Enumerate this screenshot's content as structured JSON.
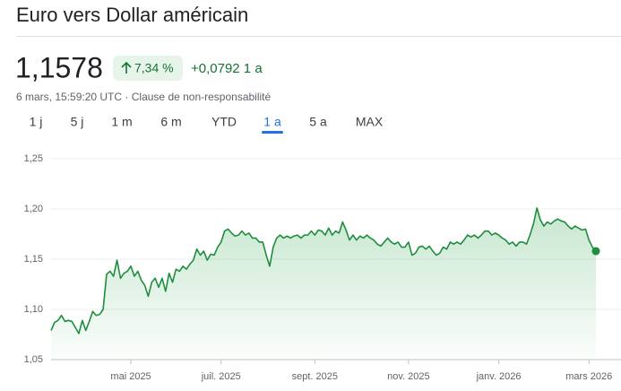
{
  "header": {
    "title": "Euro vers Dollar américain",
    "price": "1,1578",
    "change_pct": "7,34 %",
    "change_abs": "+0,0792 1 a",
    "timestamp": "6 mars, 15:59:20 UTC",
    "separator": "·",
    "disclaimer": "Clause de non-responsabilité"
  },
  "tabs": {
    "items": [
      "1 j",
      "5 j",
      "1 m",
      "6 m",
      "YTD",
      "1 a",
      "5 a",
      "MAX"
    ],
    "selected": 5
  },
  "chart_data": {
    "type": "line",
    "categories": [
      null,
      null,
      null,
      null,
      null,
      null,
      null,
      null,
      null,
      null,
      null,
      null,
      null,
      null,
      null,
      null,
      null,
      null,
      null,
      null,
      null,
      null,
      null,
      "mai 2025",
      null,
      null,
      null,
      null,
      null,
      null,
      null,
      null,
      null,
      null,
      null,
      null,
      null,
      null,
      null,
      null,
      null,
      null,
      null,
      null,
      null,
      null,
      null,
      null,
      null,
      "juil. 2025",
      null,
      null,
      null,
      null,
      null,
      null,
      null,
      null,
      null,
      null,
      null,
      null,
      null,
      null,
      null,
      null,
      null,
      null,
      null,
      null,
      null,
      null,
      null,
      null,
      null,
      null,
      "sept. 2025",
      null,
      null,
      null,
      null,
      null,
      null,
      null,
      null,
      null,
      null,
      null,
      null,
      null,
      null,
      null,
      null,
      null,
      null,
      null,
      null,
      null,
      null,
      null,
      null,
      null,
      null,
      "nov. 2025",
      null,
      null,
      null,
      null,
      null,
      null,
      null,
      null,
      null,
      null,
      null,
      null,
      null,
      null,
      null,
      null,
      null,
      null,
      null,
      null,
      null,
      null,
      null,
      null,
      null,
      "janv. 2026",
      null,
      null,
      null,
      null,
      null,
      null,
      null,
      null,
      null,
      null,
      null,
      null,
      null,
      null,
      null,
      null,
      null,
      null,
      null,
      null,
      null,
      null,
      null,
      null,
      null,
      "mars 2026",
      null,
      null
    ],
    "series": [
      {
        "color": "#1e8e3e",
        "values": [
          1.079,
          1.087,
          1.089,
          1.094,
          1.088,
          1.089,
          1.088,
          1.082,
          1.076,
          1.089,
          1.079,
          1.088,
          1.098,
          1.094,
          1.095,
          1.1,
          1.135,
          1.138,
          1.133,
          1.149,
          1.131,
          1.136,
          1.138,
          1.143,
          1.133,
          1.138,
          1.129,
          1.124,
          1.113,
          1.127,
          1.131,
          1.122,
          1.131,
          1.118,
          1.136,
          1.127,
          1.14,
          1.138,
          1.143,
          1.14,
          1.145,
          1.149,
          1.16,
          1.154,
          1.158,
          1.149,
          1.155,
          1.154,
          1.162,
          1.167,
          1.178,
          1.18,
          1.176,
          1.173,
          1.174,
          1.178,
          1.174,
          1.176,
          1.171,
          1.171,
          1.167,
          1.167,
          1.154,
          1.143,
          1.162,
          1.171,
          1.174,
          1.171,
          1.173,
          1.171,
          1.173,
          1.174,
          1.171,
          1.174,
          1.174,
          1.178,
          1.174,
          1.179,
          1.178,
          1.174,
          1.181,
          1.174,
          1.178,
          1.176,
          1.187,
          1.179,
          1.169,
          1.174,
          1.169,
          1.173,
          1.171,
          1.174,
          1.171,
          1.169,
          1.165,
          1.163,
          1.167,
          1.171,
          1.167,
          1.165,
          1.167,
          1.162,
          1.162,
          1.167,
          1.154,
          1.156,
          1.162,
          1.163,
          1.16,
          1.163,
          1.158,
          1.154,
          1.156,
          1.162,
          1.16,
          1.167,
          1.165,
          1.167,
          1.165,
          1.169,
          1.174,
          1.172,
          1.174,
          1.171,
          1.174,
          1.178,
          1.178,
          1.174,
          1.176,
          1.174,
          1.171,
          1.169,
          1.165,
          1.167,
          1.163,
          1.167,
          1.167,
          1.165,
          1.174,
          1.185,
          1.201,
          1.189,
          1.183,
          1.187,
          1.185,
          1.188,
          1.19,
          1.188,
          1.187,
          1.183,
          1.18,
          1.183,
          1.181,
          1.179,
          1.18,
          1.169,
          1.162,
          1.158
        ]
      }
    ],
    "ylim": [
      1.05,
      1.25
    ],
    "yticks": [
      {
        "value": 1.05,
        "label": "1,05"
      },
      {
        "value": 1.1,
        "label": "1,10"
      },
      {
        "value": 1.15,
        "label": "1,15"
      },
      {
        "value": 1.2,
        "label": "1,20"
      },
      {
        "value": 1.25,
        "label": "1,25"
      }
    ],
    "grid": true
  }
}
